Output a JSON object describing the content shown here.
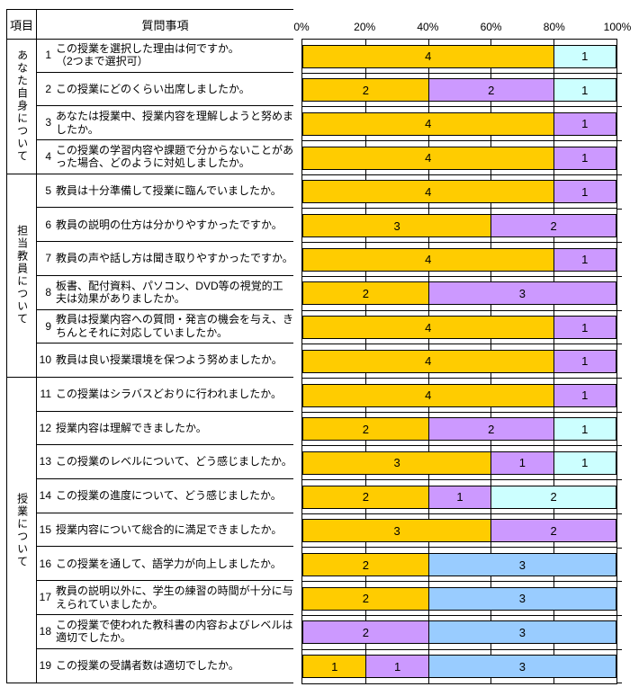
{
  "table": {
    "category_header": "項目",
    "question_header": "質問事項",
    "categories": [
      {
        "label": "あなた自身について",
        "row_start": 1,
        "row_end": 4
      },
      {
        "label": "担当教員について",
        "row_start": 5,
        "row_end": 10
      },
      {
        "label": "授業について",
        "row_start": 11,
        "row_end": 19
      }
    ],
    "questions": [
      {
        "no": "1",
        "text": "この授業を選択した理由は何ですか。\n（2つまで選択可）"
      },
      {
        "no": "2",
        "text": "この授業にどのくらい出席しましたか。"
      },
      {
        "no": "3",
        "text": "あなたは授業中、授業内容を理解しようと努めましたか。"
      },
      {
        "no": "4",
        "text": "この授業の学習内容や課題で分からないことがあった場合、どのように対処しましたか。"
      },
      {
        "no": "5",
        "text": "教員は十分準備して授業に臨んでいましたか。"
      },
      {
        "no": "6",
        "text": "教員の説明の仕方は分かりやすかったですか。"
      },
      {
        "no": "7",
        "text": "教員の声や話し方は聞き取りやすかったですか。"
      },
      {
        "no": "8",
        "text": "板書、配付資料、パソコン、DVD等の視覚的工夫は効果がありましたか。"
      },
      {
        "no": "9",
        "text": "教員は授業内容への質問・発言の機会を与え、きちんとそれに対応していましたか。"
      },
      {
        "no": "10",
        "text": "教員は良い授業環境を保つよう努めましたか。"
      },
      {
        "no": "11",
        "text": "この授業はシラバスどおりに行われましたか。"
      },
      {
        "no": "12",
        "text": "授業内容は理解できましたか。"
      },
      {
        "no": "13",
        "text": "この授業のレベルについて、どう感じましたか。"
      },
      {
        "no": "14",
        "text": "この授業の進度について、どう感じましたか。"
      },
      {
        "no": "15",
        "text": "授業内容について総合的に満足できましたか。"
      },
      {
        "no": "16",
        "text": "この授業を通して、語学力が向上しましたか。"
      },
      {
        "no": "17",
        "text": "教員の説明以外に、学生の練習の時間が十分に与えられていましたか。"
      },
      {
        "no": "18",
        "text": "この授業で使われた教科書の内容およびレベルは適切でしたか。"
      },
      {
        "no": "19",
        "text": "この授業の受講者数は適切でしたか。"
      }
    ]
  },
  "chart_data": {
    "type": "bar",
    "variant": "horizontal-100pct-stacked",
    "title": "",
    "xlabel": "",
    "ylabel": "",
    "xlim": [
      0,
      100
    ],
    "grid": true,
    "legend": false,
    "x_tick_labels": [
      "0%",
      "20%",
      "40%",
      "60%",
      "80%",
      "100%"
    ],
    "total_responses_per_question": 5,
    "segment_unit_percent": 20,
    "palette": {
      "gold": "#FFCC00",
      "purple": "#CC99FF",
      "cyan": "#CCFFFF",
      "blue": "#99CCFF"
    },
    "rows": [
      {
        "question_no": "1",
        "segments": [
          {
            "value": 4,
            "color": "gold"
          },
          {
            "value": 1,
            "color": "cyan"
          }
        ]
      },
      {
        "question_no": "2",
        "segments": [
          {
            "value": 2,
            "color": "gold"
          },
          {
            "value": 2,
            "color": "purple"
          },
          {
            "value": 1,
            "color": "cyan"
          }
        ]
      },
      {
        "question_no": "3",
        "segments": [
          {
            "value": 4,
            "color": "gold"
          },
          {
            "value": 1,
            "color": "purple"
          }
        ]
      },
      {
        "question_no": "4",
        "segments": [
          {
            "value": 4,
            "color": "gold"
          },
          {
            "value": 1,
            "color": "purple"
          }
        ]
      },
      {
        "question_no": "5",
        "segments": [
          {
            "value": 4,
            "color": "gold"
          },
          {
            "value": 1,
            "color": "purple"
          }
        ]
      },
      {
        "question_no": "6",
        "segments": [
          {
            "value": 3,
            "color": "gold"
          },
          {
            "value": 2,
            "color": "purple"
          }
        ]
      },
      {
        "question_no": "7",
        "segments": [
          {
            "value": 4,
            "color": "gold"
          },
          {
            "value": 1,
            "color": "purple"
          }
        ]
      },
      {
        "question_no": "8",
        "segments": [
          {
            "value": 2,
            "color": "gold"
          },
          {
            "value": 3,
            "color": "purple"
          }
        ]
      },
      {
        "question_no": "9",
        "segments": [
          {
            "value": 4,
            "color": "gold"
          },
          {
            "value": 1,
            "color": "purple"
          }
        ]
      },
      {
        "question_no": "10",
        "segments": [
          {
            "value": 4,
            "color": "gold"
          },
          {
            "value": 1,
            "color": "purple"
          }
        ]
      },
      {
        "question_no": "11",
        "segments": [
          {
            "value": 4,
            "color": "gold"
          },
          {
            "value": 1,
            "color": "purple"
          }
        ]
      },
      {
        "question_no": "12",
        "segments": [
          {
            "value": 2,
            "color": "gold"
          },
          {
            "value": 2,
            "color": "purple"
          },
          {
            "value": 1,
            "color": "cyan"
          }
        ]
      },
      {
        "question_no": "13",
        "segments": [
          {
            "value": 3,
            "color": "gold"
          },
          {
            "value": 1,
            "color": "purple"
          },
          {
            "value": 1,
            "color": "cyan"
          }
        ]
      },
      {
        "question_no": "14",
        "segments": [
          {
            "value": 2,
            "color": "gold"
          },
          {
            "value": 1,
            "color": "purple"
          },
          {
            "value": 2,
            "color": "cyan"
          }
        ]
      },
      {
        "question_no": "15",
        "segments": [
          {
            "value": 3,
            "color": "gold"
          },
          {
            "value": 2,
            "color": "purple"
          }
        ]
      },
      {
        "question_no": "16",
        "segments": [
          {
            "value": 2,
            "color": "gold"
          },
          {
            "value": 3,
            "color": "blue"
          }
        ]
      },
      {
        "question_no": "17",
        "segments": [
          {
            "value": 2,
            "color": "gold"
          },
          {
            "value": 3,
            "color": "blue"
          }
        ]
      },
      {
        "question_no": "18",
        "segments": [
          {
            "value": 2,
            "color": "purple"
          },
          {
            "value": 3,
            "color": "blue"
          }
        ]
      },
      {
        "question_no": "19",
        "segments": [
          {
            "value": 1,
            "color": "gold"
          },
          {
            "value": 1,
            "color": "purple"
          },
          {
            "value": 3,
            "color": "blue"
          }
        ]
      }
    ]
  }
}
